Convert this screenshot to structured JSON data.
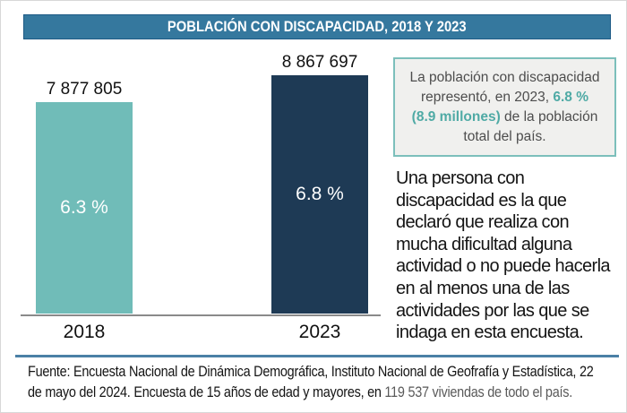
{
  "chart_data": {
    "type": "bar",
    "title": "POBLACIÓN CON DISCAPACIDAD, 2018 Y 2023",
    "categories": [
      "2018",
      "2023"
    ],
    "values": [
      7877805,
      8867697
    ],
    "value_labels": [
      "7 877 805",
      "8 867 697"
    ],
    "pct_labels": [
      "6.3 %",
      "6.8 %"
    ],
    "bar_colors": [
      "#70BCB8",
      "#1E3A55"
    ],
    "ylim": [
      0,
      8867697
    ],
    "grid": false,
    "legend": false
  },
  "highlight_box": {
    "full_text": "La población con discapacidad representó, en 2023, 6.8 % (8.9 millones) de la población total del país.",
    "line1": "La población con discapacidad",
    "line2_normal": "representó, en 2023, ",
    "line2_accent": "6.8 %",
    "line3_accent": "(8.9 millones)",
    "line3_normal": " de la población",
    "line4": "total del país."
  },
  "definition": {
    "full_text": "Una persona con discapacidad es la que declaró que realiza con mucha dificultad alguna actividad o no puede hacerla en al menos una de las actividades por las que se indaga en esta encuesta.",
    "lines": [
      "Una persona con",
      "discapacidad es la que",
      "declaró que realiza con",
      "mucha dificultad alguna",
      "actividad o no puede hacerla",
      "en al menos una de las",
      "actividades por las que se",
      "indaga en esta encuesta."
    ]
  },
  "source": {
    "line1": "Fuente: Encuesta Nacional de Dinámica Demográfica, Instituto Nacional de Geofrafía y Estadística, 22",
    "line2_black": "de mayo del 2024. Encuesta de 15 años de edad y mayores, en ",
    "line2_gray": "119 537 viviendas de todo el país."
  },
  "colors": {
    "title_bar_bg": "#35789E",
    "title_bar_border": "#1D5A85",
    "bar_2018": "#70BCB8",
    "bar_2023": "#1E3A55",
    "box_bg": "#F0F0EE",
    "box_border": "#7CBFBB",
    "accent_teal": "#4FAAA5",
    "divider": "#4B80A6",
    "axis": "#8A8A8A"
  }
}
